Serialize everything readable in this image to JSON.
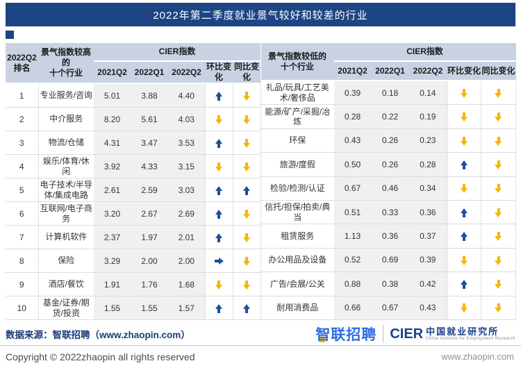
{
  "title": "2022年第二季度就业景气较好和较差的行业",
  "colors": {
    "banner": "#1d4483",
    "header_bg": "#c9d2e3",
    "arrow_up_blue": "#1a4f9c",
    "arrow_down_gold": "#f8b500",
    "cier_column_bg": "#f0f0f0",
    "source_text": "#1a3c78"
  },
  "header": {
    "rank": "2022Q2\n排名",
    "high_industries": "景气指数较高的\n十个行业",
    "low_industries": "景气指数较低的\n十个行业",
    "cier": "CIER指数",
    "cols": [
      "2021Q2",
      "2022Q1",
      "2022Q2"
    ],
    "mom": "环比变化",
    "yoy": "同比变化"
  },
  "chart_data": [
    {
      "type": "table",
      "title": "景气指数较高的十个行业",
      "columns": [
        "2022Q2排名",
        "行业",
        "2021Q2",
        "2022Q1",
        "2022Q2",
        "环比变化",
        "同比变化"
      ],
      "rows": [
        [
          "1",
          "专业服务/咨询",
          "5.01",
          "3.88",
          "4.40",
          "up",
          "down"
        ],
        [
          "2",
          "中介服务",
          "8.20",
          "5.61",
          "4.03",
          "down",
          "down"
        ],
        [
          "3",
          "物流/仓储",
          "4.31",
          "3.47",
          "3.53",
          "up",
          "down"
        ],
        [
          "4",
          "娱乐/体育/休闲",
          "3.92",
          "4.33",
          "3.15",
          "down",
          "down"
        ],
        [
          "5",
          "电子技术/半导体/集成电路",
          "2.61",
          "2.59",
          "3.03",
          "up",
          "up"
        ],
        [
          "6",
          "互联网/电子商务",
          "3.20",
          "2.67",
          "2.69",
          "up",
          "down"
        ],
        [
          "7",
          "计算机软件",
          "2.37",
          "1.97",
          "2.01",
          "up",
          "down"
        ],
        [
          "8",
          "保险",
          "3.29",
          "2.00",
          "2.00",
          "right",
          "down"
        ],
        [
          "9",
          "酒店/餐饮",
          "1.91",
          "1.76",
          "1.68",
          "down",
          "down"
        ],
        [
          "10",
          "基金/证券/期货/投资",
          "1.55",
          "1.55",
          "1.57",
          "up",
          "up"
        ]
      ]
    },
    {
      "type": "table",
      "title": "景气指数较低的十个行业",
      "columns": [
        "行业",
        "2021Q2",
        "2022Q1",
        "2022Q2",
        "环比变化",
        "同比变化"
      ],
      "rows": [
        [
          "礼品/玩具/工艺美术/奢侈品",
          "0.39",
          "0.18",
          "0.14",
          "down",
          "down"
        ],
        [
          "能源/矿产/采掘/冶炼",
          "0.28",
          "0.22",
          "0.19",
          "down",
          "down"
        ],
        [
          "环保",
          "0.43",
          "0.26",
          "0.23",
          "down",
          "down"
        ],
        [
          "旅游/度假",
          "0.50",
          "0.26",
          "0.28",
          "up",
          "down"
        ],
        [
          "检验/检测/认证",
          "0.67",
          "0.46",
          "0.34",
          "down",
          "down"
        ],
        [
          "信托/担保/拍卖/典当",
          "0.51",
          "0.33",
          "0.36",
          "up",
          "down"
        ],
        [
          "租赁服务",
          "1.13",
          "0.36",
          "0.37",
          "up",
          "down"
        ],
        [
          "办公用品及设备",
          "0.52",
          "0.69",
          "0.39",
          "down",
          "down"
        ],
        [
          "广告/会展/公关",
          "0.88",
          "0.38",
          "0.42",
          "up",
          "down"
        ],
        [
          "耐用消费品",
          "0.66",
          "0.67",
          "0.43",
          "down",
          "down"
        ]
      ]
    }
  ],
  "footer": {
    "source": "数据来源：智联招聘（www.zhaopin.com）",
    "zhaopin_logo": "智联招聘",
    "cier_logo": "CIER",
    "cier_cn": "中国就业研究所",
    "cier_en": "China Institute for Employment Research",
    "copyright": "Copyright © 2022zhaopin all rights reserved",
    "website": "www.zhaopin.com"
  }
}
